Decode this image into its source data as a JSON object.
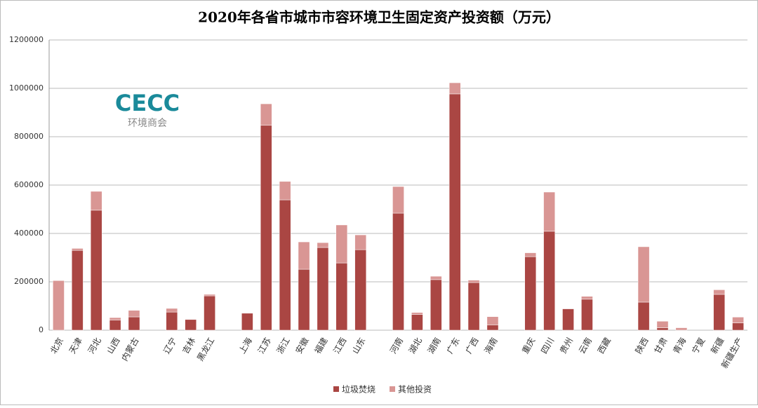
{
  "chart_data": {
    "type": "stacked_bar",
    "title": "2020年各省市城市市容环境卫生固定资产投资额（万元）",
    "logo": {
      "text": "CECC",
      "subtitle": "环境商会"
    },
    "categories": [
      "北京",
      "天津",
      "河北",
      "山西",
      "内蒙古",
      null,
      "辽宁",
      "吉林",
      "黑龙江",
      null,
      "上海",
      "江苏",
      "浙江",
      "安徽",
      "福建",
      "江西",
      "山东",
      null,
      "河南",
      "湖北",
      "湖南",
      "广东",
      "广西",
      "海南",
      null,
      "重庆",
      "四川",
      "贵州",
      "云南",
      "西藏",
      null,
      "陕西",
      "甘肃",
      "青海",
      "宁夏",
      "新疆",
      "新疆生产"
    ],
    "series": [
      {
        "name": "垃圾焚烧",
        "color": "#aa4643",
        "values": [
          0,
          330000,
          496000,
          42000,
          55000,
          null,
          75000,
          44000,
          142000,
          null,
          70000,
          847000,
          539000,
          252000,
          342000,
          278000,
          333000,
          null,
          484000,
          65000,
          209000,
          977000,
          197000,
          22000,
          null,
          304000,
          409000,
          88000,
          128000,
          0,
          null,
          116000,
          10000,
          0,
          0,
          148000,
          30000
        ]
      },
      {
        "name": "其他投资",
        "color": "#d99694",
        "values": [
          205000,
          8000,
          78000,
          10000,
          27000,
          null,
          15000,
          0,
          6000,
          null,
          0,
          89000,
          76000,
          113000,
          20000,
          157000,
          61000,
          null,
          110000,
          8000,
          14000,
          46000,
          10000,
          34000,
          null,
          16000,
          162000,
          2000,
          12000,
          0,
          null,
          229000,
          27000,
          10000,
          0,
          19000,
          24000
        ]
      }
    ],
    "ylim": [
      0,
      1200000
    ],
    "yticks": [
      0,
      200000,
      400000,
      600000,
      800000,
      1000000,
      1200000
    ],
    "grid": true,
    "legend": "bottom"
  }
}
